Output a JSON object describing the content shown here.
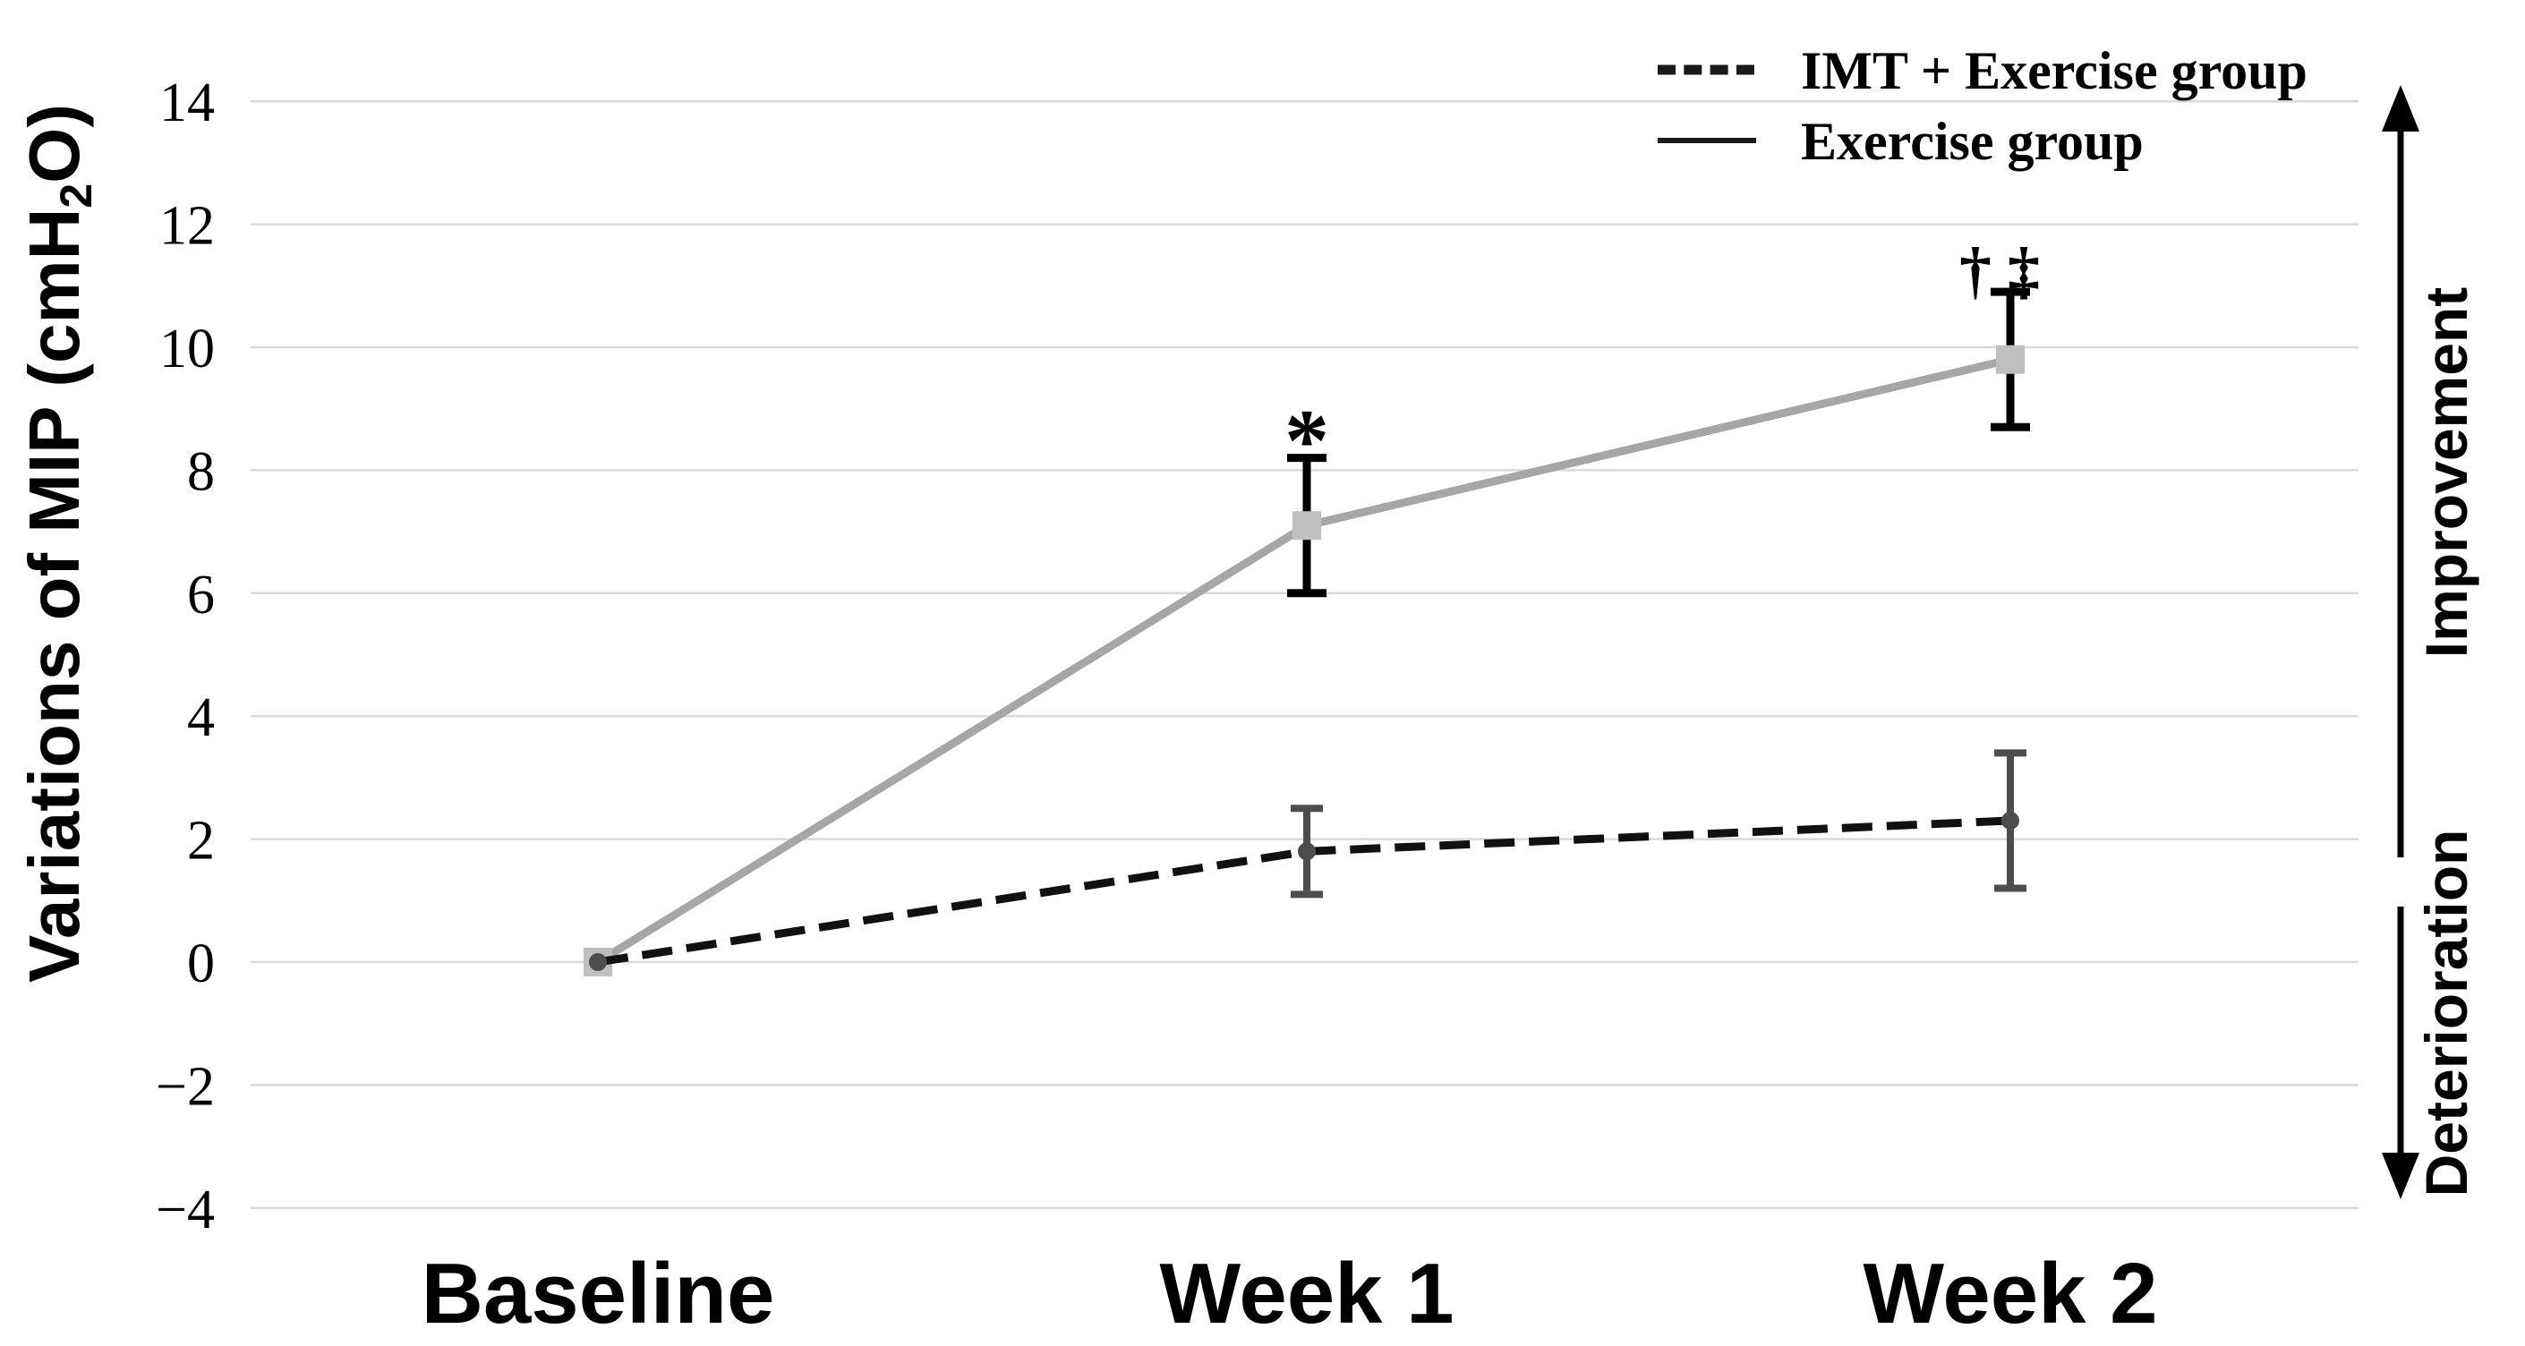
{
  "figure": {
    "background": "#ffffff",
    "text_color": "#000000"
  },
  "chart_data": {
    "type": "line",
    "title": "",
    "categories": [
      "Baseline",
      "Week 1",
      "Week 2"
    ],
    "ylabel": "Variations of MIP (cmH₂O)",
    "ylabel_parts": {
      "pre": "Variations of MIP (cmH",
      "sub": "2",
      "post": "O)"
    },
    "ylim": [
      -4,
      14
    ],
    "grid": true,
    "gridline_color": "#d9d9d9",
    "legend_position": "top-right",
    "legend_sample_color": "#1a1a1a",
    "yticks": [
      {
        "value": 14,
        "label": "14"
      },
      {
        "value": 12,
        "label": "12"
      },
      {
        "value": 10,
        "label": "10"
      },
      {
        "value": 8,
        "label": "8"
      },
      {
        "value": 6,
        "label": "6"
      },
      {
        "value": 4,
        "label": "4"
      },
      {
        "value": 2,
        "label": "2"
      },
      {
        "value": 0,
        "label": "0"
      },
      {
        "value": -2,
        "label": "−2"
      },
      {
        "value": -4,
        "label": "−4"
      }
    ],
    "series": [
      {
        "name": "IMT + Exercise group",
        "line_style": "dashed",
        "line_color": "#111111",
        "marker": "circle",
        "marker_color": "#4d4d4d",
        "error_bar_color": "#4d4d4d",
        "values": [
          0,
          1.8,
          2.3
        ],
        "error": [
          0,
          0.7,
          1.1
        ]
      },
      {
        "name": "Exercise group",
        "line_style": "solid",
        "line_color": "#a6a6a6",
        "marker": "square",
        "marker_color": "#bfbfbf",
        "error_bar_color": "#000000",
        "values": [
          0,
          7.1,
          9.8
        ],
        "error": [
          0,
          1.1,
          1.1
        ]
      }
    ],
    "annotations": [
      {
        "text": "*",
        "category_index": 1,
        "y": 8.0,
        "font_size": 100
      },
      {
        "text": "† ‡",
        "category_index": 2,
        "y": 10.9,
        "font_size": 72
      }
    ],
    "side_labels": [
      {
        "text": "Improvement",
        "direction": "up"
      },
      {
        "text": "Deterioration",
        "direction": "down"
      }
    ]
  }
}
